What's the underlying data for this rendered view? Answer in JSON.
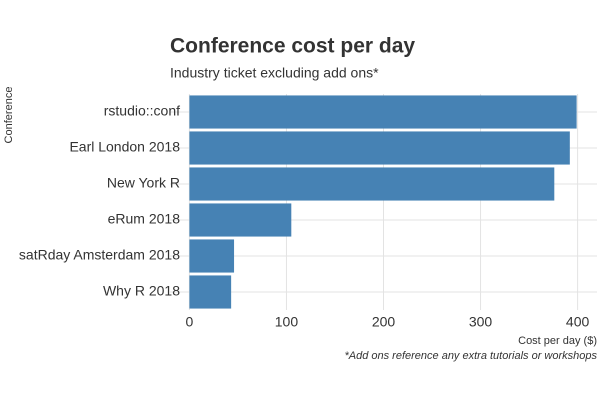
{
  "chart_data": {
    "type": "bar",
    "orientation": "horizontal",
    "title": "Conference cost per day",
    "subtitle": "Industry ticket excluding add ons*",
    "y_label": "Conference",
    "x_label": "Cost per day ($)",
    "caption": "*Add ons reference any extra tutorials or workshops",
    "categories": [
      "rstudio::conf",
      "Earl London 2018",
      "New York R",
      "eRum 2018",
      "satRday Amsterdam 2018",
      "Why R 2018"
    ],
    "values": [
      399,
      392,
      376,
      105,
      46,
      43
    ],
    "color": "#4682b4",
    "xlim": [
      -20,
      420
    ],
    "xticks": [
      0,
      100,
      200,
      300,
      400
    ],
    "grid": true
  }
}
